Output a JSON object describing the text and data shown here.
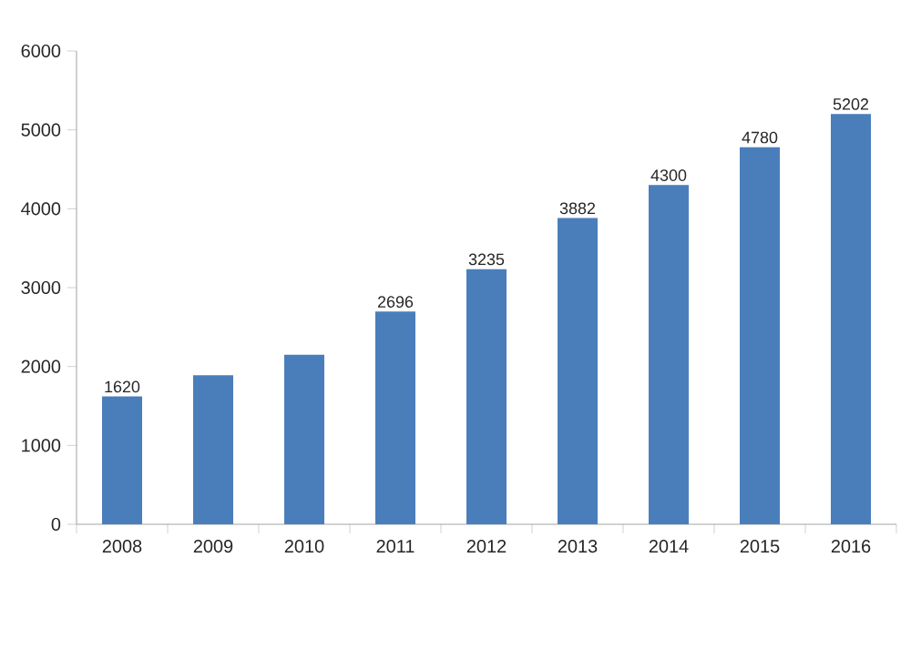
{
  "chart_data": {
    "type": "bar",
    "categories": [
      "2008",
      "2009",
      "2010",
      "2011",
      "2012",
      "2013",
      "2014",
      "2015",
      "2016"
    ],
    "values": [
      1620,
      1890,
      2150,
      2696,
      3235,
      3882,
      4300,
      4780,
      5202
    ],
    "value_labels": [
      "1620",
      null,
      null,
      "2696",
      "3235",
      "3882",
      "4300",
      "4780",
      "5202"
    ],
    "color": "#4a7ebb",
    "ylim": [
      0,
      6000
    ],
    "yticks": [
      0,
      1000,
      2000,
      3000,
      4000,
      5000,
      6000
    ],
    "grid": false
  }
}
